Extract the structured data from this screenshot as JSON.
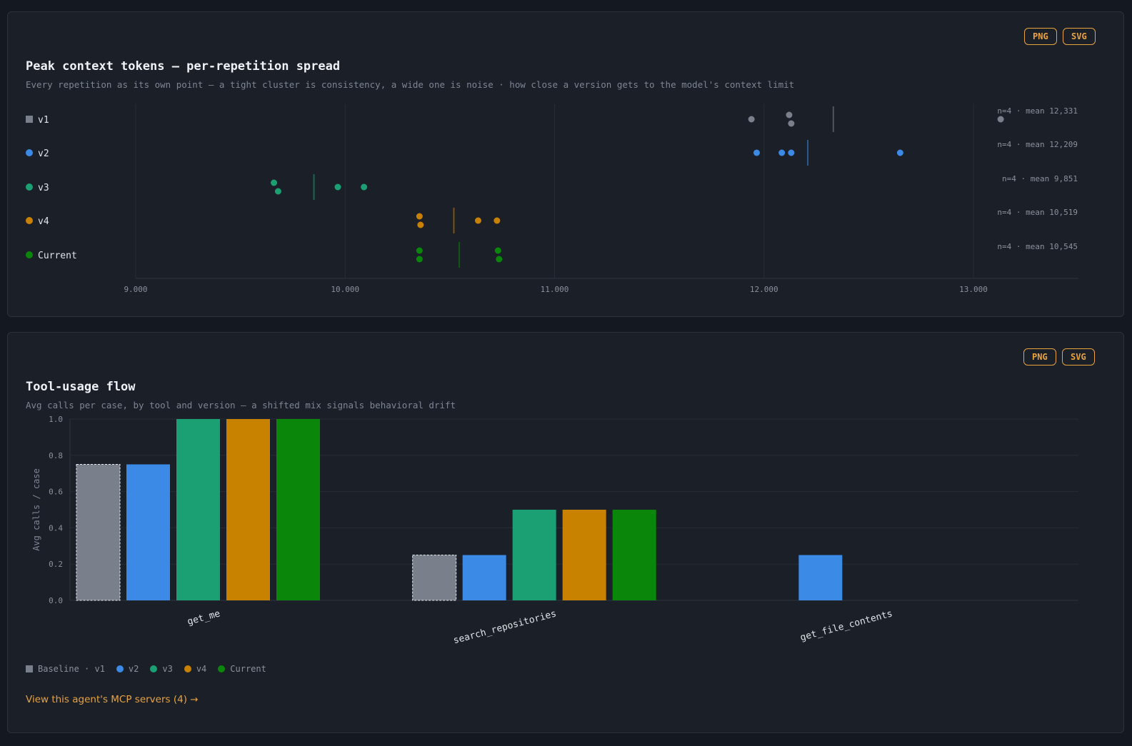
{
  "buttons": {
    "png": "PNG",
    "svg": "SVG"
  },
  "chart1": {
    "title": "Peak context tokens — per-repetition spread",
    "subtitle": "Every repetition as its own point — a tight cluster is consistency, a wide one is noise · how close a version gets to the model's context limit"
  },
  "chart2": {
    "title": "Tool-usage flow",
    "subtitle": "Avg calls per case, by tool and version — a shifted mix signals behavioral drift"
  },
  "legend": [
    {
      "label": "Baseline · v1",
      "color": "#7a808b",
      "shape": "square"
    },
    {
      "label": "v2",
      "color": "#3b8ae6",
      "shape": "dot"
    },
    {
      "label": "v3",
      "color": "#1aa072",
      "shape": "dot"
    },
    {
      "label": "v4",
      "color": "#c98200",
      "shape": "dot"
    },
    {
      "label": "Current",
      "color": "#0a870a",
      "shape": "dot"
    }
  ],
  "link": {
    "label": "View this agent's MCP servers (4) →"
  },
  "chart_data": [
    {
      "type": "scatter",
      "title": "Peak context tokens — per-repetition spread",
      "xlim": [
        9000,
        13500
      ],
      "xticks": [
        9000,
        10000,
        11000,
        12000,
        13000
      ],
      "xtick_labels": [
        "9.000",
        "10.000",
        "11.000",
        "12.000",
        "13.000"
      ],
      "grid": true,
      "series": [
        {
          "name": "v1",
          "color": "#7a808b",
          "marker": "square",
          "points": [
            11940,
            12130,
            12120,
            13130
          ],
          "mean": 12331,
          "annotation": "n=4 · mean 12,331"
        },
        {
          "name": "v2",
          "color": "#3b8ae6",
          "marker": "dot",
          "points": [
            11965,
            12085,
            12130,
            12650
          ],
          "mean": 12209,
          "annotation": "n=4 · mean 12,209"
        },
        {
          "name": "v3",
          "color": "#1aa072",
          "marker": "dot",
          "points": [
            9660,
            9680,
            9965,
            10090
          ],
          "mean": 9851,
          "annotation": "n=4 · mean 9,851"
        },
        {
          "name": "v4",
          "color": "#c98200",
          "marker": "dot",
          "points": [
            10360,
            10355,
            10635,
            10725
          ],
          "mean": 10519,
          "annotation": "n=4 · mean 10,519"
        },
        {
          "name": "Current",
          "color": "#0a870a",
          "marker": "dot",
          "points": [
            10355,
            10355,
            10735,
            10730
          ],
          "mean": 10545,
          "annotation": "n=4 · mean 10,545"
        }
      ]
    },
    {
      "type": "bar",
      "title": "Tool-usage flow",
      "ylabel": "Avg calls / case",
      "ylim": [
        0,
        1.0
      ],
      "yticks": [
        "0.0",
        "0.2",
        "0.4",
        "0.6",
        "0.8",
        "1.0"
      ],
      "categories": [
        "get_me",
        "search_repositories",
        "get_file_contents"
      ],
      "grid": true,
      "legend_position": "bottom-left",
      "series": [
        {
          "name": "Baseline · v1",
          "color": "#7a808b",
          "baseline": true,
          "values": [
            0.75,
            0.25,
            0
          ]
        },
        {
          "name": "v2",
          "color": "#3b8ae6",
          "values": [
            0.75,
            0.25,
            0.25
          ]
        },
        {
          "name": "v3",
          "color": "#1aa072",
          "values": [
            1.0,
            0.5,
            0
          ]
        },
        {
          "name": "v4",
          "color": "#c98200",
          "values": [
            1.0,
            0.5,
            0
          ]
        },
        {
          "name": "Current",
          "color": "#0a870a",
          "values": [
            1.0,
            0.5,
            0
          ]
        }
      ]
    }
  ]
}
